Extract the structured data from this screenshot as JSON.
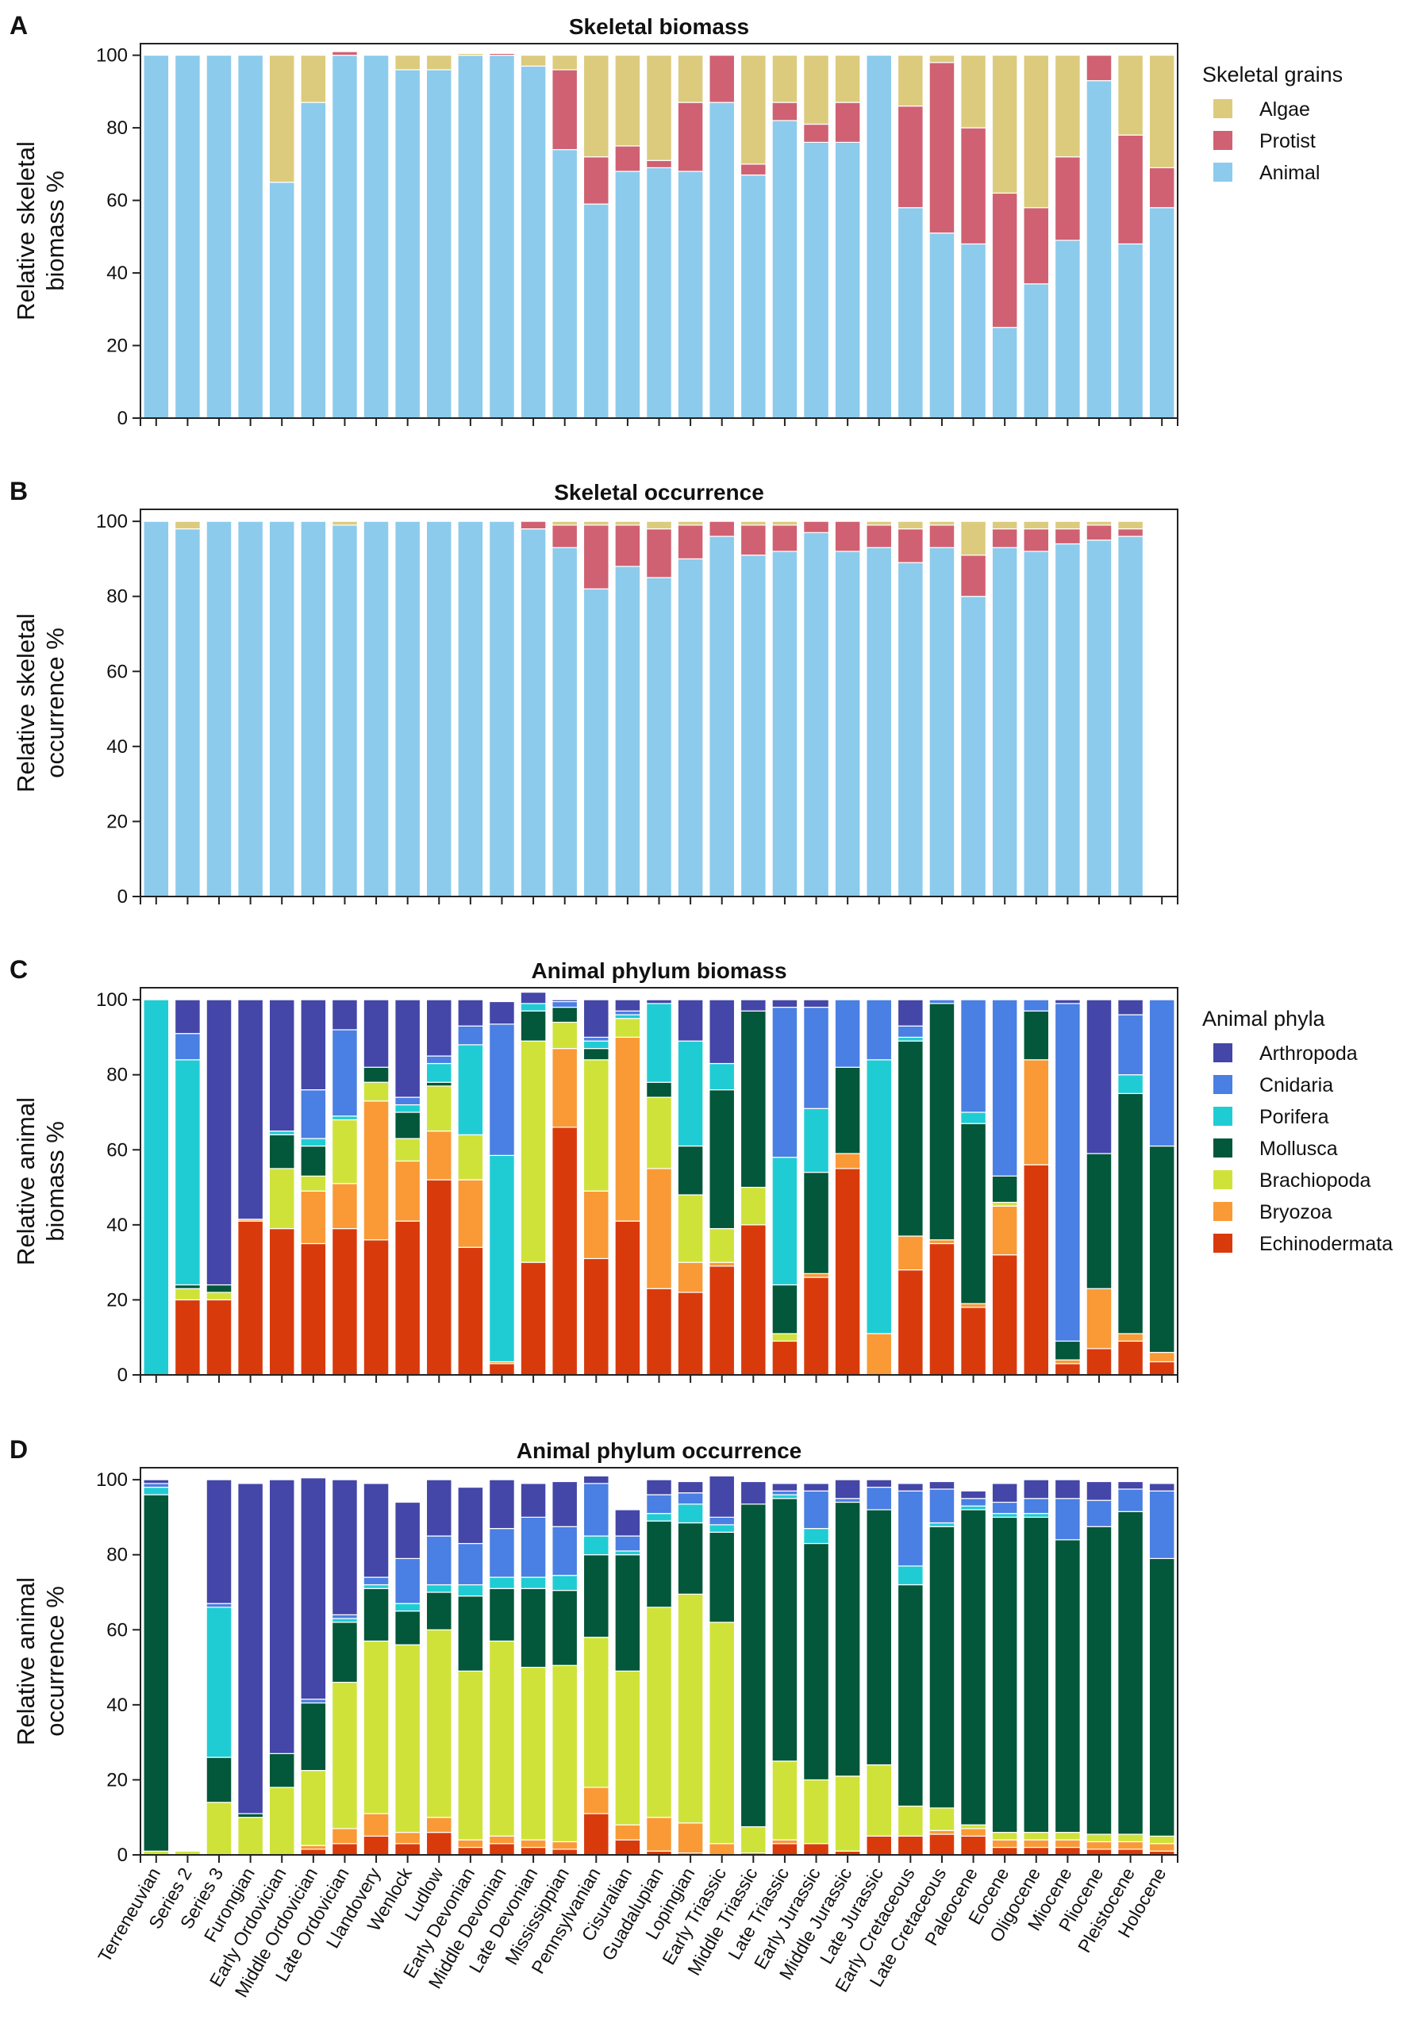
{
  "colors": {
    "Algae": "#dccb7c",
    "Protist": "#d06172",
    "Animal": "#8ccbec",
    "Arthropoda": "#4446a8",
    "Cnidaria": "#4a7fe3",
    "Porifera": "#20ccd4",
    "Mollusca": "#03573a",
    "Brachiopoda": "#cfe23a",
    "Bryozoa": "#f99a36",
    "Echinodermata": "#d93a0c"
  },
  "chart_data": [
    {
      "id": "A",
      "panel_label": "A",
      "type": "bar",
      "stacked": true,
      "title": "Skeletal biomass",
      "ylabel_lines": [
        "Relative skeletal",
        "biomass %"
      ],
      "ylim": [
        0,
        100
      ],
      "yticks": [
        0,
        20,
        40,
        60,
        80,
        100
      ],
      "legend_title": "Skeletal grains",
      "legend_entries": [
        "Algae",
        "Protist",
        "Animal"
      ],
      "categories": [
        "Terreneuvian",
        "Series 2",
        "Series 3",
        "Furongian",
        "Early Ordovician",
        "Middle Ordovician",
        "Late Ordovician",
        "Llandovery",
        "Wenlock",
        "Ludlow",
        "Early Devonian",
        "Middle Devonian",
        "Late Devonian",
        "Mississippian",
        "Pennsylvanian",
        "Cisuralian",
        "Guadalupian",
        "Lopingian",
        "Early Triassic",
        "Middle Triassic",
        "Late Triassic",
        "Early Jurassic",
        "Middle Jurassic",
        "Late Jurassic",
        "Early Cretaceous",
        "Late Cretaceous",
        "Paleocene",
        "Eocene",
        "Oligocene",
        "Miocene",
        "Pliocene",
        "Pleistocene",
        "Holocene"
      ],
      "series": [
        {
          "name": "Animal",
          "values": [
            100,
            100,
            100,
            100,
            65,
            87,
            100,
            100,
            96,
            96,
            100,
            100,
            97,
            74,
            59,
            68,
            69,
            68,
            87,
            67,
            82,
            76,
            76,
            100,
            58,
            51,
            48,
            25,
            37,
            49,
            93,
            48,
            58
          ]
        },
        {
          "name": "Protist",
          "values": [
            0,
            0,
            0,
            0,
            0,
            0,
            1,
            0,
            0,
            0,
            0,
            0.5,
            0,
            22,
            13,
            7,
            2,
            19,
            13,
            3,
            5,
            5,
            11,
            0,
            28,
            47,
            32,
            37,
            21,
            23,
            7,
            30,
            11
          ]
        },
        {
          "name": "Algae",
          "values": [
            0,
            0,
            0,
            0,
            35,
            13,
            0,
            0,
            4,
            4,
            0.5,
            0,
            3,
            4,
            28,
            25,
            29,
            13,
            0,
            30,
            13,
            19,
            13,
            0,
            14,
            2,
            20,
            38,
            42,
            28,
            0,
            22,
            31
          ]
        }
      ]
    },
    {
      "id": "B",
      "panel_label": "B",
      "type": "bar",
      "stacked": true,
      "title": "Skeletal occurrence",
      "ylabel_lines": [
        "Relative skeletal",
        "occurrence %"
      ],
      "ylim": [
        0,
        100
      ],
      "yticks": [
        0,
        20,
        40,
        60,
        80,
        100
      ],
      "categories": [
        "Terreneuvian",
        "Series 2",
        "Series 3",
        "Furongian",
        "Early Ordovician",
        "Middle Ordovician",
        "Late Ordovician",
        "Llandovery",
        "Wenlock",
        "Ludlow",
        "Early Devonian",
        "Middle Devonian",
        "Late Devonian",
        "Mississippian",
        "Pennsylvanian",
        "Cisuralian",
        "Guadalupian",
        "Lopingian",
        "Early Triassic",
        "Middle Triassic",
        "Late Triassic",
        "Early Jurassic",
        "Middle Jurassic",
        "Late Jurassic",
        "Early Cretaceous",
        "Late Cretaceous",
        "Paleocene",
        "Eocene",
        "Oligocene",
        "Miocene",
        "Pliocene",
        "Pleistocene",
        "Holocene"
      ],
      "series": [
        {
          "name": "Animal",
          "values": [
            100,
            98,
            100,
            100,
            100,
            100,
            99,
            100,
            100,
            100,
            100,
            100,
            98,
            93,
            82,
            88,
            85,
            90,
            96,
            91,
            92,
            97,
            92,
            93,
            89,
            93,
            80,
            93,
            92,
            94,
            95,
            96,
            null
          ]
        },
        {
          "name": "Protist",
          "values": [
            0,
            0,
            0,
            0,
            0,
            0,
            0,
            0,
            0,
            0,
            0,
            0,
            2,
            6,
            17,
            11,
            13,
            9,
            4,
            8,
            7,
            3,
            8,
            6,
            9,
            6,
            11,
            5,
            6,
            4,
            4,
            2,
            null
          ]
        },
        {
          "name": "Algae",
          "values": [
            0,
            2,
            0,
            0,
            0,
            0,
            1,
            0,
            0,
            0,
            0,
            0,
            0,
            1,
            1,
            1,
            2,
            1,
            0,
            1,
            1,
            0,
            0,
            1,
            2,
            1,
            9,
            2,
            2,
            2,
            1,
            2,
            null
          ]
        }
      ]
    },
    {
      "id": "C",
      "panel_label": "C",
      "type": "bar",
      "stacked": true,
      "title": "Animal phylum biomass",
      "ylabel_lines": [
        "Relative animal",
        "biomass %"
      ],
      "ylim": [
        0,
        100
      ],
      "yticks": [
        0,
        20,
        40,
        60,
        80,
        100
      ],
      "legend_title": "Animal phyla",
      "legend_entries": [
        "Arthropoda",
        "Cnidaria",
        "Porifera",
        "Mollusca",
        "Brachiopoda",
        "Bryozoa",
        "Echinodermata"
      ],
      "categories": [
        "Terreneuvian",
        "Series 2",
        "Series 3",
        "Furongian",
        "Early Ordovician",
        "Middle Ordovician",
        "Late Ordovician",
        "Llandovery",
        "Wenlock",
        "Ludlow",
        "Early Devonian",
        "Middle Devonian",
        "Late Devonian",
        "Mississippian",
        "Pennsylvanian",
        "Cisuralian",
        "Guadalupian",
        "Lopingian",
        "Early Triassic",
        "Middle Triassic",
        "Late Triassic",
        "Early Jurassic",
        "Middle Jurassic",
        "Late Jurassic",
        "Early Cretaceous",
        "Late Cretaceous",
        "Paleocene",
        "Eocene",
        "Oligocene",
        "Miocene",
        "Pliocene",
        "Pleistocene",
        "Holocene"
      ],
      "series": [
        {
          "name": "Echinodermata",
          "values": [
            0,
            20,
            20,
            41,
            39,
            35,
            39,
            36,
            41,
            52,
            34,
            3,
            30,
            66,
            31,
            41,
            23,
            22,
            29,
            40,
            9,
            26,
            55,
            0,
            28,
            35,
            18,
            32,
            56,
            3,
            7,
            9,
            3.5
          ]
        },
        {
          "name": "Bryozoa",
          "values": [
            0,
            0,
            0,
            0.5,
            0,
            14,
            12,
            37,
            16,
            13,
            18,
            0.5,
            0,
            21,
            18,
            49,
            32,
            8,
            1,
            0,
            0,
            1,
            4,
            11,
            9,
            1,
            1,
            13,
            28,
            1,
            16,
            2,
            2.5
          ]
        },
        {
          "name": "Brachiopoda",
          "values": [
            0,
            3,
            2,
            0,
            16,
            4,
            17,
            5,
            6,
            12,
            12,
            0,
            59,
            7,
            35,
            5,
            19,
            18,
            9,
            10,
            2,
            0,
            0,
            0,
            0,
            0,
            0,
            1,
            0,
            0,
            0,
            0,
            0
          ]
        },
        {
          "name": "Mollusca",
          "values": [
            0,
            1,
            2,
            0,
            9,
            8,
            0,
            4,
            7,
            1,
            0,
            0,
            8,
            4,
            3,
            0,
            4,
            13,
            37,
            47,
            13,
            27,
            23,
            0,
            52,
            63,
            48,
            7,
            13,
            5,
            36,
            64,
            55
          ]
        },
        {
          "name": "Porifera",
          "values": [
            100,
            60,
            0,
            0,
            1,
            2,
            1,
            0,
            2,
            5,
            24,
            55,
            2,
            0,
            2,
            1,
            21,
            28,
            7,
            0,
            34,
            17,
            0,
            73,
            1,
            0,
            3,
            0,
            0,
            0,
            0,
            5,
            0
          ]
        },
        {
          "name": "Cnidaria",
          "values": [
            0,
            7,
            0,
            0,
            0,
            13,
            23,
            0,
            2,
            2,
            5,
            35,
            0,
            1.5,
            1,
            1,
            0,
            0,
            0,
            0,
            40,
            27,
            18,
            16,
            3,
            1,
            30,
            47,
            3,
            90,
            0,
            16,
            39
          ]
        },
        {
          "name": "Arthropoda",
          "values": [
            0,
            9,
            76,
            58.5,
            35,
            24,
            8,
            18,
            26,
            15,
            7,
            6,
            3,
            0.5,
            10,
            3,
            1,
            11,
            17,
            3,
            2,
            2,
            0,
            0,
            7,
            0,
            0,
            0,
            0,
            1,
            41,
            4,
            0
          ]
        }
      ]
    },
    {
      "id": "D",
      "panel_label": "D",
      "type": "bar",
      "stacked": true,
      "title": "Animal phylum occurrence",
      "ylabel_lines": [
        "Relative animal",
        "occurrence %"
      ],
      "ylim": [
        0,
        100
      ],
      "yticks": [
        0,
        20,
        40,
        60,
        80,
        100
      ],
      "xlabel": "",
      "categories": [
        "Terreneuvian",
        "Series 2",
        "Series 3",
        "Furongian",
        "Early Ordovician",
        "Middle Ordovician",
        "Late Ordovician",
        "Llandovery",
        "Wenlock",
        "Ludlow",
        "Early Devonian",
        "Middle Devonian",
        "Late Devonian",
        "Mississippian",
        "Pennsylvanian",
        "Cisuralian",
        "Guadalupian",
        "Lopingian",
        "Early Triassic",
        "Middle Triassic",
        "Late Triassic",
        "Early Jurassic",
        "Middle Jurassic",
        "Late Jurassic",
        "Early Cretaceous",
        "Late Cretaceous",
        "Paleocene",
        "Eocene",
        "Oligocene",
        "Miocene",
        "Pliocene",
        "Pleistocene",
        "Holocene"
      ],
      "series": [
        {
          "name": "Echinodermata",
          "values": [
            0,
            0,
            0,
            0,
            0,
            1.5,
            3,
            5,
            3,
            6,
            2,
            3,
            2,
            1.5,
            11,
            4,
            1,
            0.5,
            0,
            0.5,
            3,
            3,
            1,
            5,
            5,
            5.5,
            5,
            2,
            2,
            2,
            1.5,
            1.5,
            1
          ]
        },
        {
          "name": "Bryozoa",
          "values": [
            0,
            0,
            0,
            0,
            0,
            1,
            4,
            6,
            3,
            4,
            2,
            2,
            2,
            2,
            7,
            4,
            9,
            8,
            3,
            0,
            1,
            0,
            0,
            0,
            0,
            1,
            2,
            2,
            2,
            2,
            2,
            2,
            2
          ]
        },
        {
          "name": "Brachiopoda",
          "values": [
            1,
            1,
            14,
            10,
            18,
            20,
            39,
            46,
            50,
            50,
            45,
            52,
            46,
            47,
            40,
            41,
            56,
            61,
            59,
            7,
            21,
            17,
            20,
            19,
            8,
            6,
            1,
            2,
            2,
            2,
            2,
            2,
            2
          ]
        },
        {
          "name": "Mollusca",
          "values": [
            95,
            0,
            12,
            1,
            9,
            18,
            16,
            14,
            9,
            10,
            20,
            14,
            21,
            20,
            22,
            31,
            23,
            19,
            24,
            86,
            70,
            63,
            73,
            68,
            59,
            75,
            84,
            84,
            84,
            78,
            82,
            86,
            74
          ]
        },
        {
          "name": "Porifera",
          "values": [
            2,
            0,
            40,
            0,
            0,
            0,
            1,
            1,
            2,
            2,
            3,
            3,
            3,
            4,
            5,
            1,
            2,
            5,
            2,
            0,
            1,
            4,
            0,
            0,
            5,
            1,
            1,
            1,
            1,
            0,
            0,
            0,
            0
          ]
        },
        {
          "name": "Cnidaria",
          "values": [
            1,
            0,
            1,
            0,
            0,
            1,
            1,
            2,
            12,
            13,
            11,
            13,
            16,
            13,
            14,
            4,
            5,
            3,
            2,
            0,
            1,
            10,
            1,
            6,
            20,
            9,
            2,
            3,
            4,
            11,
            7,
            6,
            18
          ]
        },
        {
          "name": "Arthropoda",
          "values": [
            1,
            0,
            33,
            88,
            73,
            59,
            36,
            25,
            15,
            15,
            15,
            13,
            9,
            12,
            2,
            7,
            4,
            3,
            11,
            6,
            2,
            2,
            5,
            2,
            2,
            2,
            2,
            5,
            5,
            5,
            5,
            2,
            2
          ]
        }
      ]
    }
  ]
}
